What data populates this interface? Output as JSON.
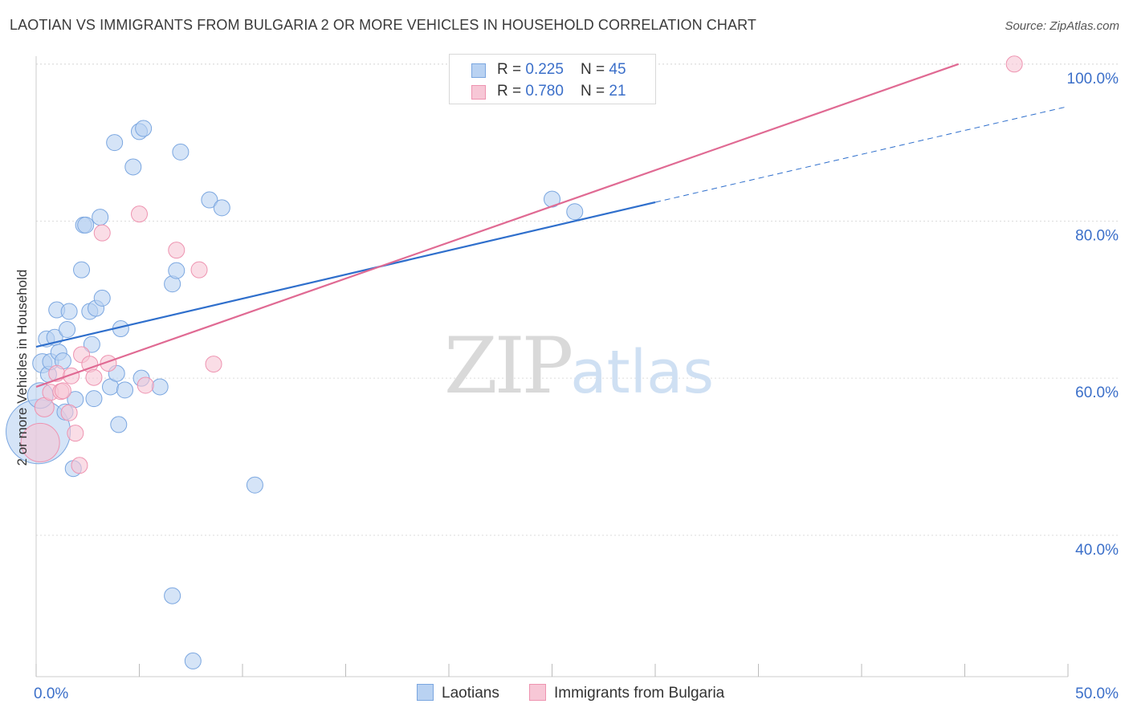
{
  "title": "LAOTIAN VS IMMIGRANTS FROM BULGARIA 2 OR MORE VEHICLES IN HOUSEHOLD CORRELATION CHART",
  "source": "Source: ZipAtlas.com",
  "watermark": {
    "zip": "ZIP",
    "atlas": "atlas"
  },
  "legend_top": [
    {
      "r_label": "R = ",
      "r_value": "0.225",
      "n_label": "N = ",
      "n_value": "45"
    },
    {
      "r_label": "R = ",
      "r_value": "0.780",
      "n_label": "N = ",
      "n_value": "21"
    }
  ],
  "colors": {
    "laotians_fill": "#b9d2f2",
    "laotians_stroke": "#7aa6e0",
    "laotians_line": "#2f6fcc",
    "bulgaria_fill": "#f7c7d6",
    "bulgaria_stroke": "#ee93b0",
    "bulgaria_line": "#e06a93",
    "grid": "#dcdcdc",
    "tick_text": "#3b6fc9"
  },
  "chart_data": {
    "type": "scatter",
    "title": "LAOTIAN VS IMMIGRANTS FROM BULGARIA 2 OR MORE VEHICLES IN HOUSEHOLD CORRELATION CHART",
    "xlabel": "",
    "ylabel": "2 or more Vehicles in Household",
    "xlim": [
      0,
      50
    ],
    "ylim": [
      22,
      101
    ],
    "x_tick_labels": [
      "0.0%",
      "50.0%"
    ],
    "y_ticks": [
      40,
      60,
      80,
      100
    ],
    "y_tick_labels": [
      "40.0%",
      "60.0%",
      "80.0%",
      "100.0%"
    ],
    "legend_position": "bottom-center",
    "series": [
      {
        "name": "Laotians",
        "points": [
          [
            0.1,
            53.2
          ],
          [
            0.2,
            57.8
          ],
          [
            0.3,
            61.9
          ],
          [
            0.5,
            65.0
          ],
          [
            0.6,
            60.5
          ],
          [
            0.7,
            62.1
          ],
          [
            0.9,
            65.2
          ],
          [
            1.0,
            68.7
          ],
          [
            1.1,
            63.3
          ],
          [
            1.3,
            62.2
          ],
          [
            1.4,
            55.7
          ],
          [
            1.5,
            66.2
          ],
          [
            1.6,
            68.5
          ],
          [
            1.8,
            48.5
          ],
          [
            1.9,
            57.3
          ],
          [
            2.2,
            73.8
          ],
          [
            2.3,
            79.5
          ],
          [
            2.4,
            79.5
          ],
          [
            2.6,
            68.5
          ],
          [
            2.7,
            64.3
          ],
          [
            2.8,
            57.4
          ],
          [
            2.9,
            68.9
          ],
          [
            3.1,
            80.5
          ],
          [
            3.2,
            70.2
          ],
          [
            3.6,
            58.9
          ],
          [
            3.8,
            90.0
          ],
          [
            3.9,
            60.6
          ],
          [
            4.0,
            54.1
          ],
          [
            4.1,
            66.3
          ],
          [
            4.3,
            58.5
          ],
          [
            4.7,
            86.9
          ],
          [
            5.0,
            91.4
          ],
          [
            5.1,
            60.0
          ],
          [
            5.2,
            91.8
          ],
          [
            6.0,
            58.9
          ],
          [
            6.6,
            72.0
          ],
          [
            6.6,
            32.3
          ],
          [
            6.8,
            73.7
          ],
          [
            7.0,
            88.8
          ],
          [
            7.6,
            24.0
          ],
          [
            8.4,
            82.7
          ],
          [
            9.0,
            81.7
          ],
          [
            10.6,
            46.4
          ],
          [
            25.0,
            82.8
          ],
          [
            26.1,
            81.2
          ]
        ],
        "sizes": [
          40,
          16,
          12,
          10,
          10,
          10,
          10,
          10,
          10,
          10,
          10,
          10,
          10,
          10,
          10,
          10,
          10,
          10,
          10,
          10,
          10,
          10,
          10,
          10,
          10,
          10,
          10,
          10,
          10,
          10,
          10,
          10,
          10,
          10,
          10,
          10,
          10,
          10,
          10,
          10,
          10,
          10,
          10,
          10,
          10
        ],
        "trend": {
          "x": [
            0,
            30
          ],
          "y": [
            64.0,
            82.4
          ],
          "dashed_to": [
            50,
            94.6
          ]
        }
      },
      {
        "name": "Immigrants from Bulgaria",
        "points": [
          [
            0.2,
            51.8
          ],
          [
            0.4,
            56.3
          ],
          [
            0.7,
            58.2
          ],
          [
            1.0,
            60.6
          ],
          [
            1.2,
            58.3
          ],
          [
            1.3,
            58.4
          ],
          [
            1.6,
            55.6
          ],
          [
            1.7,
            60.3
          ],
          [
            1.9,
            53.0
          ],
          [
            2.1,
            48.9
          ],
          [
            2.2,
            63.0
          ],
          [
            2.6,
            61.8
          ],
          [
            2.8,
            60.1
          ],
          [
            3.2,
            78.5
          ],
          [
            3.5,
            61.9
          ],
          [
            5.0,
            80.9
          ],
          [
            5.3,
            59.1
          ],
          [
            6.8,
            76.3
          ],
          [
            7.9,
            73.8
          ],
          [
            8.6,
            61.8
          ],
          [
            47.4,
            100.0
          ]
        ],
        "sizes": [
          24,
          12,
          10,
          10,
          10,
          10,
          10,
          10,
          10,
          10,
          10,
          10,
          10,
          10,
          10,
          10,
          10,
          10,
          10,
          10,
          10
        ],
        "trend": {
          "x": [
            0,
            44.7
          ],
          "y": [
            58.9,
            100.0
          ]
        }
      }
    ]
  }
}
